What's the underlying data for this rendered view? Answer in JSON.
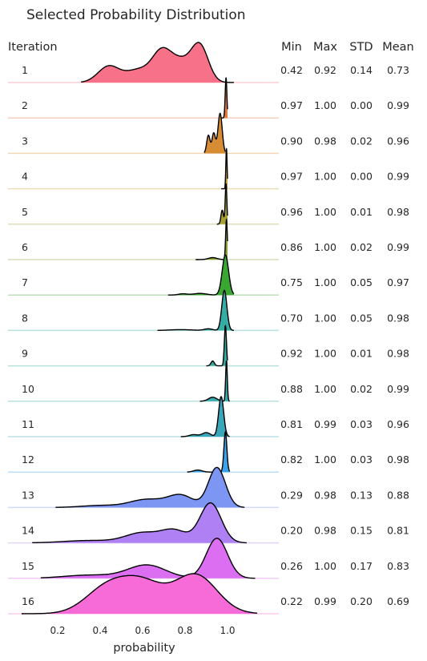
{
  "chart_data": {
    "type": "ridgeline",
    "title": "Selected Probability Distribution",
    "row_header": "Iteration",
    "xlabel": "probability",
    "xlim": [
      0.0,
      1.18
    ],
    "xticks": [
      0.2,
      0.4,
      0.6,
      0.8,
      1.0
    ],
    "xtick_labels": [
      "0.2",
      "0.4",
      "0.6",
      "0.8",
      "1.0"
    ],
    "stat_headers": [
      "Min",
      "Max",
      "STD",
      "Mean"
    ],
    "series": [
      {
        "name": "1",
        "color": "#f77189",
        "kde_range": [
          0.31,
          1.03
        ],
        "peaks": [
          [
            0.44,
            0.05,
            0.45
          ],
          [
            0.58,
            0.06,
            0.35
          ],
          [
            0.69,
            0.045,
            0.8
          ],
          [
            0.78,
            0.05,
            0.55
          ],
          [
            0.87,
            0.04,
            1.0
          ]
        ],
        "stats": [
          "0.42",
          "0.92",
          "0.14",
          "0.73"
        ]
      },
      {
        "name": "2",
        "color": "#e7773e",
        "kde_range": [
          0.97,
          1.0
        ],
        "peaks": [
          [
            0.993,
            0.004,
            1.0
          ]
        ],
        "stats": [
          "0.97",
          "1.00",
          "0.00",
          "0.99"
        ]
      },
      {
        "name": "3",
        "color": "#d58c32",
        "kde_range": [
          0.89,
          0.99
        ],
        "peaks": [
          [
            0.91,
            0.008,
            0.45
          ],
          [
            0.935,
            0.008,
            0.5
          ],
          [
            0.965,
            0.01,
            1.0
          ]
        ],
        "stats": [
          "0.90",
          "0.98",
          "0.02",
          "0.96"
        ]
      },
      {
        "name": "4",
        "color": "#c29e31",
        "kde_range": [
          0.97,
          1.0
        ],
        "peaks": [
          [
            0.995,
            0.003,
            1.0
          ]
        ],
        "stats": [
          "0.97",
          "1.00",
          "0.00",
          "0.99"
        ]
      },
      {
        "name": "5",
        "color": "#a4a031",
        "kde_range": [
          0.95,
          1.0
        ],
        "peaks": [
          [
            0.975,
            0.006,
            0.35
          ],
          [
            0.993,
            0.004,
            1.0
          ]
        ],
        "stats": [
          "0.96",
          "1.00",
          "0.01",
          "0.98"
        ]
      },
      {
        "name": "6",
        "color": "#88a131",
        "kde_range": [
          0.85,
          1.0
        ],
        "peaks": [
          [
            0.93,
            0.02,
            0.05
          ],
          [
            0.995,
            0.004,
            1.0
          ]
        ],
        "stats": [
          "0.86",
          "1.00",
          "0.02",
          "0.99"
        ]
      },
      {
        "name": "7",
        "color": "#3ba733",
        "kde_range": [
          0.72,
          1.03
        ],
        "peaks": [
          [
            0.79,
            0.02,
            0.03
          ],
          [
            0.87,
            0.03,
            0.04
          ],
          [
            0.99,
            0.015,
            1.0
          ]
        ],
        "stats": [
          "0.75",
          "1.00",
          "0.05",
          "0.97"
        ]
      },
      {
        "name": "8",
        "color": "#36ada4",
        "kde_range": [
          0.67,
          1.03
        ],
        "peaks": [
          [
            0.78,
            0.05,
            0.02
          ],
          [
            0.91,
            0.02,
            0.04
          ],
          [
            0.985,
            0.012,
            1.0
          ]
        ],
        "stats": [
          "0.70",
          "1.00",
          "0.05",
          "0.98"
        ]
      },
      {
        "name": "9",
        "color": "#34a99f",
        "kde_range": [
          0.9,
          1.0
        ],
        "peaks": [
          [
            0.93,
            0.008,
            0.12
          ],
          [
            0.99,
            0.005,
            1.0
          ]
        ],
        "stats": [
          "0.92",
          "1.00",
          "0.01",
          "0.98"
        ]
      },
      {
        "name": "10",
        "color": "#38aaac",
        "kde_range": [
          0.87,
          1.01
        ],
        "peaks": [
          [
            0.93,
            0.02,
            0.1
          ],
          [
            0.995,
            0.004,
            1.0
          ]
        ],
        "stats": [
          "0.88",
          "1.00",
          "0.02",
          "0.99"
        ]
      },
      {
        "name": "11",
        "color": "#39a7b9",
        "kde_range": [
          0.78,
          1.01
        ],
        "peaks": [
          [
            0.84,
            0.02,
            0.05
          ],
          [
            0.9,
            0.02,
            0.1
          ],
          [
            0.97,
            0.012,
            1.0
          ]
        ],
        "stats": [
          "0.81",
          "0.99",
          "0.03",
          "0.96"
        ]
      },
      {
        "name": "12",
        "color": "#3ba3ec",
        "kde_range": [
          0.81,
          1.01
        ],
        "peaks": [
          [
            0.86,
            0.02,
            0.05
          ],
          [
            0.99,
            0.007,
            1.0
          ]
        ],
        "stats": [
          "0.82",
          "1.00",
          "0.03",
          "0.98"
        ]
      },
      {
        "name": "13",
        "color": "#7d95f3",
        "kde_range": [
          0.19,
          1.08
        ],
        "peaks": [
          [
            0.4,
            0.09,
            0.05
          ],
          [
            0.62,
            0.08,
            0.2
          ],
          [
            0.78,
            0.06,
            0.3
          ],
          [
            0.95,
            0.04,
            1.0
          ]
        ],
        "stats": [
          "0.29",
          "0.98",
          "0.13",
          "0.88"
        ]
      },
      {
        "name": "14",
        "color": "#ae80f4",
        "kde_range": [
          0.08,
          1.09
        ],
        "peaks": [
          [
            0.35,
            0.12,
            0.06
          ],
          [
            0.6,
            0.08,
            0.25
          ],
          [
            0.75,
            0.06,
            0.3
          ],
          [
            0.92,
            0.05,
            1.0
          ]
        ],
        "stats": [
          "0.20",
          "0.98",
          "0.15",
          "0.81"
        ]
      },
      {
        "name": "15",
        "color": "#dc6ef2",
        "kde_range": [
          0.12,
          1.13
        ],
        "peaks": [
          [
            0.35,
            0.12,
            0.08
          ],
          [
            0.62,
            0.09,
            0.33
          ],
          [
            0.95,
            0.05,
            1.0
          ]
        ],
        "stats": [
          "0.26",
          "1.00",
          "0.17",
          "0.83"
        ]
      },
      {
        "name": "16",
        "color": "#f66bd8",
        "kde_range": [
          0.03,
          1.14
        ],
        "peaks": [
          [
            0.43,
            0.1,
            0.65
          ],
          [
            0.6,
            0.1,
            0.75
          ],
          [
            0.85,
            0.1,
            1.0
          ]
        ],
        "stats": [
          "0.22",
          "0.99",
          "0.20",
          "0.69"
        ]
      }
    ]
  }
}
